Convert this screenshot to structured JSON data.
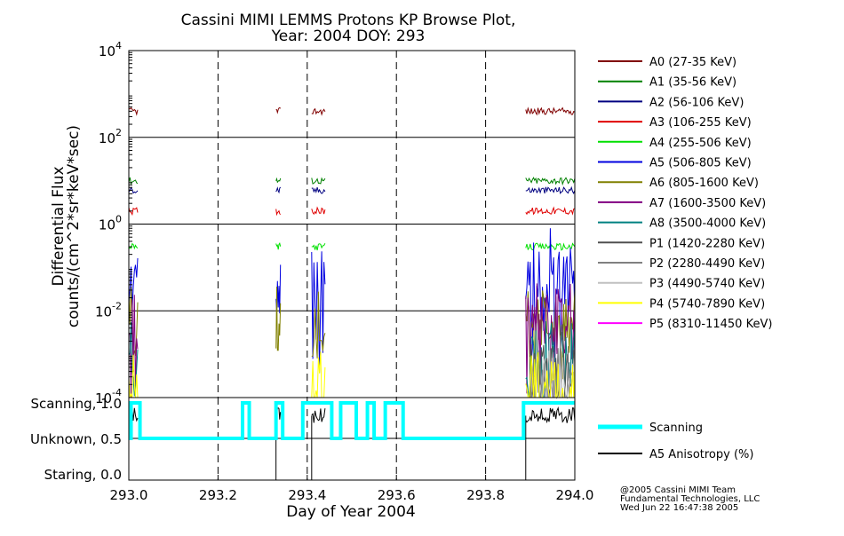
{
  "chart_data": [
    {
      "type": "line",
      "title": "Cassini MIMI LEMMS Protons KP Browse Plot,",
      "subtitle": "Year: 2004 DOY: 293",
      "ylabel": "Differential Flux",
      "ylabel2": "counts/(cm^2*sr*keV*sec)",
      "yscale": "log",
      "ylim": [
        0.0001,
        10000
      ],
      "xlim": [
        293.0,
        294.0
      ],
      "y_ticks": [
        {
          "base": "10",
          "exp": "4"
        },
        {
          "base": "10",
          "exp": "2"
        },
        {
          "base": "10",
          "exp": "0"
        },
        {
          "base": "10",
          "exp": "-2"
        },
        {
          "base": "10",
          "exp": "-4"
        }
      ],
      "grid": true,
      "vertical_dashed_lines": [
        293.2,
        293.4,
        293.6,
        293.8
      ],
      "legend_position": "right",
      "series": [
        {
          "name": "A0 (27-35 KeV)",
          "color": "#800000",
          "typical_value": 400,
          "segments": [
            [
              293.0,
              293.02
            ],
            [
              293.33,
              293.34
            ],
            [
              293.41,
              293.44
            ],
            [
              293.89,
              294.0
            ]
          ]
        },
        {
          "name": "A1 (35-56 KeV)",
          "color": "#008000",
          "typical_value": 10,
          "segments": [
            [
              293.0,
              293.02
            ],
            [
              293.33,
              293.34
            ],
            [
              293.41,
              293.44
            ],
            [
              293.89,
              294.0
            ]
          ]
        },
        {
          "name": "A2 (56-106 KeV)",
          "color": "#000080",
          "typical_value": 6,
          "segments": [
            [
              293.0,
              293.02
            ],
            [
              293.33,
              293.34
            ],
            [
              293.41,
              293.44
            ],
            [
              293.89,
              294.0
            ]
          ]
        },
        {
          "name": "A3 (106-255 KeV)",
          "color": "#e00000",
          "typical_value": 2,
          "segments": [
            [
              293.0,
              293.02
            ],
            [
              293.33,
              293.34
            ],
            [
              293.41,
              293.44
            ],
            [
              293.89,
              294.0
            ]
          ]
        },
        {
          "name": "A4 (255-506 KeV)",
          "color": "#00e000",
          "typical_value": 0.3,
          "segments": [
            [
              293.0,
              293.02
            ],
            [
              293.33,
              293.34
            ],
            [
              293.41,
              293.44
            ],
            [
              293.89,
              294.0
            ]
          ]
        },
        {
          "name": "A5 (506-805 KeV)",
          "color": "#0000e0",
          "typical_value": 0.03,
          "segments": [
            [
              293.0,
              293.02
            ],
            [
              293.33,
              293.34
            ],
            [
              293.41,
              293.44
            ],
            [
              293.89,
              294.0
            ]
          ]
        },
        {
          "name": "A6 (805-1600 KeV)",
          "color": "#808000",
          "typical_value": 0.005,
          "segments": [
            [
              293.0,
              293.02
            ],
            [
              293.33,
              293.34
            ],
            [
              293.41,
              293.44
            ],
            [
              293.89,
              294.0
            ]
          ]
        },
        {
          "name": "A7 (1600-3500 KeV)",
          "color": "#800080",
          "typical_value": 0.003,
          "segments": [
            [
              293.0,
              293.02
            ],
            [
              293.89,
              294.0
            ]
          ]
        },
        {
          "name": "A8 (3500-4000 KeV)",
          "color": "#008080",
          "typical_value": 0.0008,
          "segments": [
            [
              293.0,
              293.02
            ],
            [
              293.89,
              294.0
            ]
          ]
        },
        {
          "name": "P1 (1420-2280 KeV)",
          "color": "#505050",
          "typical_value": 0.0003,
          "segments": [
            [
              293.9,
              294.0
            ]
          ]
        },
        {
          "name": "P2 (2280-4490 KeV)",
          "color": "#808080",
          "typical_value": 0.0002,
          "segments": [
            [
              293.9,
              294.0
            ]
          ]
        },
        {
          "name": "P3 (4490-5740 KeV)",
          "color": "#c0c0c0",
          "typical_value": 0.0002,
          "segments": [
            [
              293.9,
              294.0
            ]
          ]
        },
        {
          "name": "P4 (5740-7890 KeV)",
          "color": "#ffff00",
          "typical_value": 0.00015,
          "segments": [
            [
              293.0,
              293.02
            ],
            [
              293.41,
              293.44
            ],
            [
              293.89,
              294.0
            ]
          ]
        },
        {
          "name": "P5 (8310-11450 KeV)",
          "color": "#ff00ff",
          "typical_value": 0.0001,
          "segments": []
        }
      ]
    },
    {
      "type": "line",
      "xlabel": "Day of Year 2004",
      "xlim": [
        293.0,
        294.0
      ],
      "ylim": [
        0.0,
        1.0
      ],
      "x_ticks": [
        "293.0",
        "293.2",
        "293.4",
        "293.6",
        "293.8",
        "294.0"
      ],
      "y_tick_labels": [
        {
          "label": "Scanning, 1.0",
          "value": 1.0
        },
        {
          "label": "Unknown, 0.5",
          "value": 0.5
        },
        {
          "label": "Staring, 0.0",
          "value": 0.0
        }
      ],
      "legend_position": "right",
      "series": [
        {
          "name": "Scanning",
          "color": "#00ffff",
          "step": [
            [
              293.0,
              0.5
            ],
            [
              293.005,
              1.0
            ],
            [
              293.025,
              0.5
            ],
            [
              293.255,
              1.0
            ],
            [
              293.27,
              0.5
            ],
            [
              293.33,
              1.0
            ],
            [
              293.345,
              0.5
            ],
            [
              293.39,
              1.0
            ],
            [
              293.455,
              0.5
            ],
            [
              293.475,
              1.0
            ],
            [
              293.51,
              0.5
            ],
            [
              293.535,
              1.0
            ],
            [
              293.55,
              0.5
            ],
            [
              293.575,
              1.0
            ],
            [
              293.615,
              0.5
            ],
            [
              293.885,
              1.0
            ],
            [
              294.0,
              1.0
            ]
          ]
        },
        {
          "name": "A5 Anisotropy (%)",
          "color": "#000000",
          "typical_value": 0.82,
          "segments": [
            [
              293.0,
              293.02
            ],
            [
              293.33,
              293.34
            ],
            [
              293.41,
              293.44
            ],
            [
              293.89,
              294.0
            ]
          ]
        }
      ]
    }
  ],
  "footer": {
    "line1": "@2005 Cassini MIMI Team",
    "line2": "Fundamental Technologies, LLC",
    "line3": "Wed Jun 22 16:47:38 2005"
  }
}
